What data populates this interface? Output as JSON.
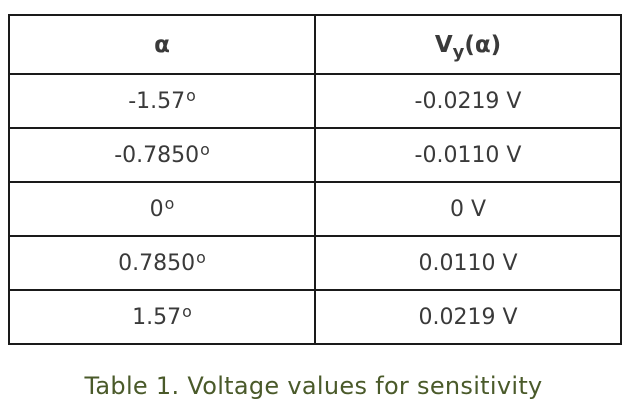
{
  "table": {
    "header": {
      "col1": "α",
      "col2_base": "V",
      "col2_sub": "y",
      "col2_arg": "(α)"
    },
    "rows": [
      {
        "angle": "-1.57",
        "degree": "o",
        "voltage": "-0.0219 V"
      },
      {
        "angle": "-0.7850",
        "degree": "o",
        "voltage": "-0.0110 V"
      },
      {
        "angle": "0",
        "degree": "o",
        "voltage": "0 V"
      },
      {
        "angle": "0.7850",
        "degree": "o",
        "voltage": "0.0110 V"
      },
      {
        "angle": "1.57",
        "degree": "o",
        "voltage": "0.0219 V"
      }
    ]
  },
  "caption": "Table 1. Voltage values for sensitivity",
  "colors": {
    "border": "#1a1a1a",
    "text": "#3a3a3a",
    "caption": "#4a5a2a"
  }
}
